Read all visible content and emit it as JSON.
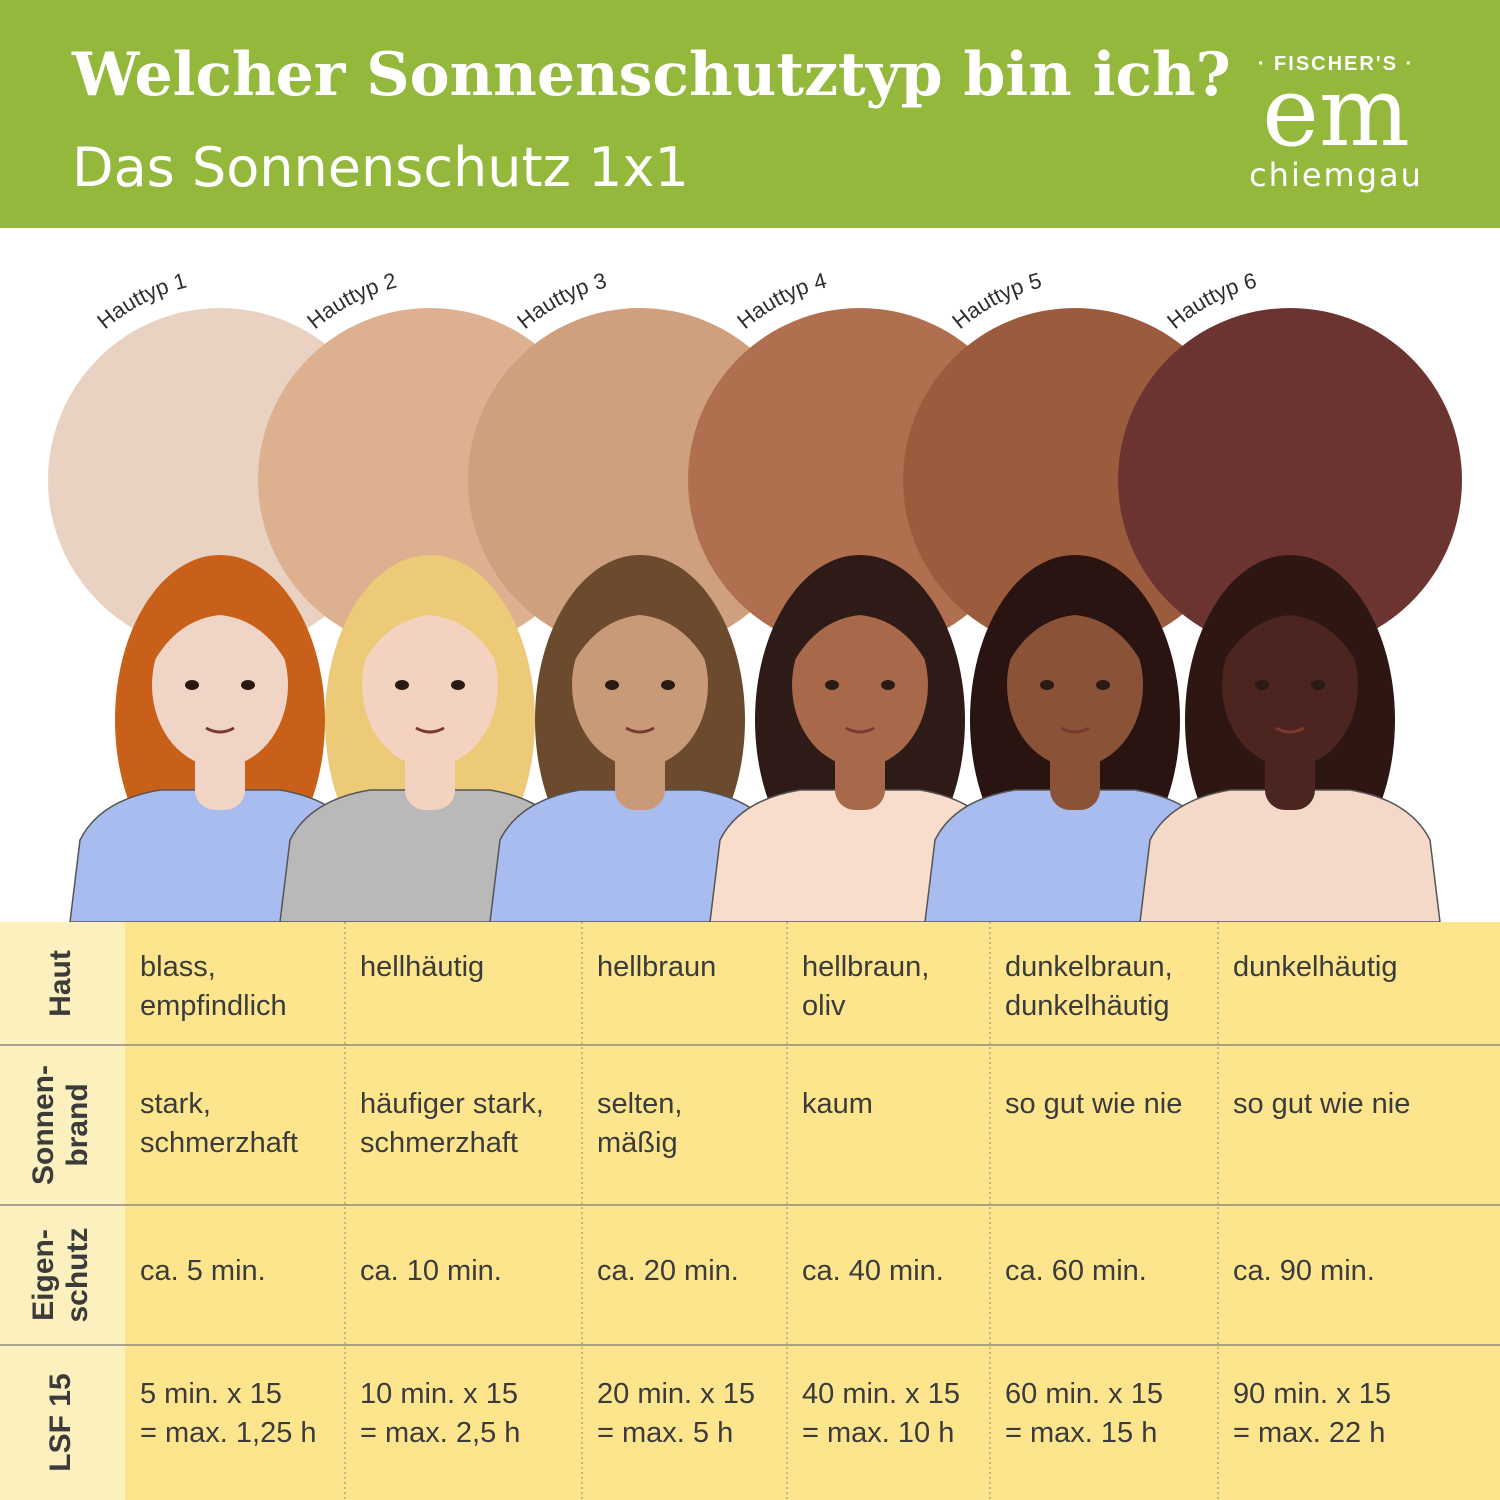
{
  "header": {
    "title": "Welcher Sonnenschutztyp bin ich?",
    "subtitle": "Das Sonnenschutz 1x1"
  },
  "logo": {
    "top": "· FISCHER'S ·",
    "main": "em",
    "bottom": "chiemgau"
  },
  "skin_types": [
    "Hauttyp 1",
    "Hauttyp 2",
    "Hauttyp 3",
    "Hauttyp 4",
    "Hauttyp 5",
    "Hauttyp 6"
  ],
  "table": {
    "rows": [
      {
        "header": [
          "Haut"
        ],
        "cells": [
          [
            "blass,",
            "empfindlich"
          ],
          [
            "hellhäutig"
          ],
          [
            "hellbraun"
          ],
          [
            "hellbraun,",
            "oliv"
          ],
          [
            "dunkelbraun,",
            "dunkelhäutig"
          ],
          [
            "dunkelhäutig"
          ]
        ]
      },
      {
        "header": [
          "Sonnen-",
          "brand"
        ],
        "cells": [
          [
            "stark,",
            "schmerzhaft"
          ],
          [
            "häufiger stark,",
            "schmerzhaft"
          ],
          [
            "selten,",
            "mäßig"
          ],
          [
            "kaum"
          ],
          [
            "so gut wie nie"
          ],
          [
            "so gut wie nie"
          ]
        ]
      },
      {
        "header": [
          "Eigen-",
          "schutz"
        ],
        "cells": [
          [
            "ca. 5 min."
          ],
          [
            "ca. 10 min."
          ],
          [
            "ca. 20 min."
          ],
          [
            "ca. 40 min."
          ],
          [
            "ca. 60 min."
          ],
          [
            "ca. 90 min."
          ]
        ]
      },
      {
        "header": [
          "LSF 15"
        ],
        "cells": [
          [
            "5 min. x 15",
            "= max. 1,25 h"
          ],
          [
            "10 min. x 15",
            "= max. 2,5 h"
          ],
          [
            "20 min. x 15",
            "= max. 5 h"
          ],
          [
            "40 min. x 15",
            "= max. 10 h"
          ],
          [
            "60 min. x 15",
            "= max. 15 h"
          ],
          [
            "90 min. x 15",
            "= max. 22 h"
          ]
        ]
      }
    ]
  }
}
